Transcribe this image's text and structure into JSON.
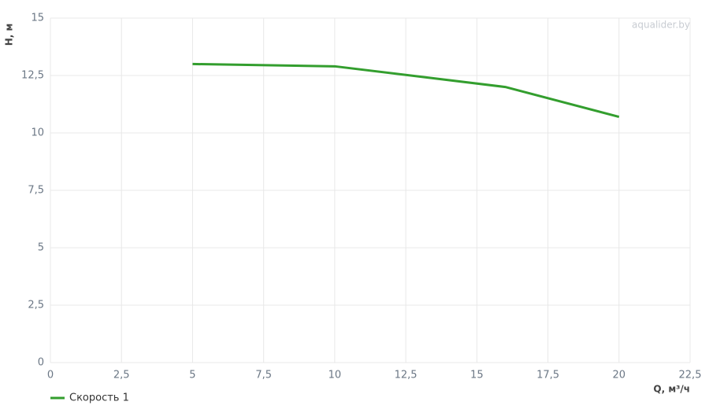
{
  "chart_data": {
    "type": "line",
    "x_label": "Q, м³/ч",
    "y_label": "H, м",
    "watermark": "aqualider.by",
    "x": [
      5,
      10,
      16,
      20
    ],
    "series": [
      {
        "name": "Скорость 1",
        "color": "#339e2e",
        "values": [
          13.0,
          12.9,
          12.0,
          10.7
        ]
      }
    ],
    "xlim": [
      0,
      22.5
    ],
    "xticks": [
      0,
      {
        "value": 2.5,
        "label": "2,5"
      },
      5,
      {
        "value": 7.5,
        "label": "7,5"
      },
      10,
      {
        "value": 12.5,
        "label": "12,5"
      },
      15,
      {
        "value": 17.5,
        "label": "17,5"
      },
      20,
      {
        "value": 22.5,
        "label": "22,5"
      }
    ],
    "ylim": [
      0,
      15
    ],
    "yticks": [
      0,
      {
        "value": 2.5,
        "label": "2,5"
      },
      5,
      {
        "value": 7.5,
        "label": "7,5"
      },
      10,
      {
        "value": 12.5,
        "label": "12,5"
      },
      15
    ],
    "grid": true,
    "legend": "bottom-left"
  }
}
